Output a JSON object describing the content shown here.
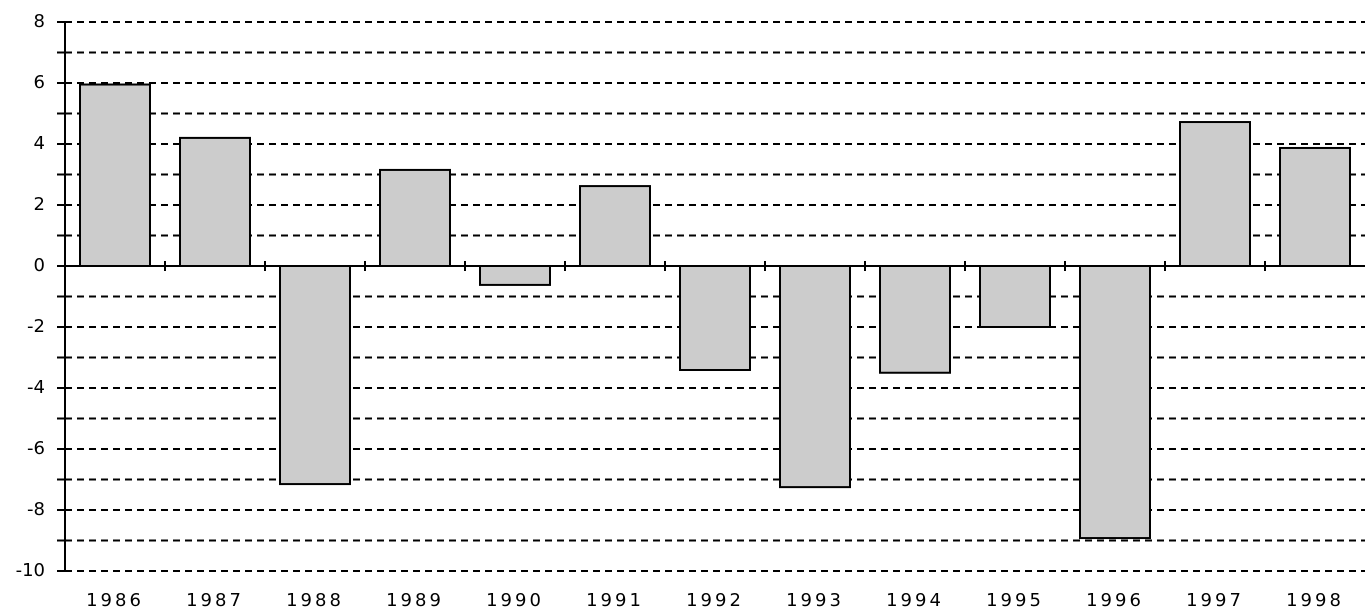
{
  "chart_data": {
    "type": "bar",
    "categories": [
      "1986",
      "1987",
      "1988",
      "1989",
      "1990",
      "1991",
      "1992",
      "1993",
      "1994",
      "1995",
      "1996",
      "1997",
      "1998"
    ],
    "values": [
      5.95,
      4.2,
      -7.15,
      3.15,
      -0.62,
      2.62,
      -3.41,
      -7.25,
      -3.5,
      -2.0,
      -8.92,
      4.72,
      3.87
    ],
    "color": "#cccccc",
    "ylim": [
      -10,
      8
    ],
    "yticks": [
      -10,
      -8,
      -6,
      -4,
      -2,
      0,
      2,
      4,
      6,
      8
    ],
    "minor_yticks": [
      -9,
      -7,
      -5,
      -3,
      -1,
      1,
      3,
      5,
      7
    ],
    "grid": true
  }
}
